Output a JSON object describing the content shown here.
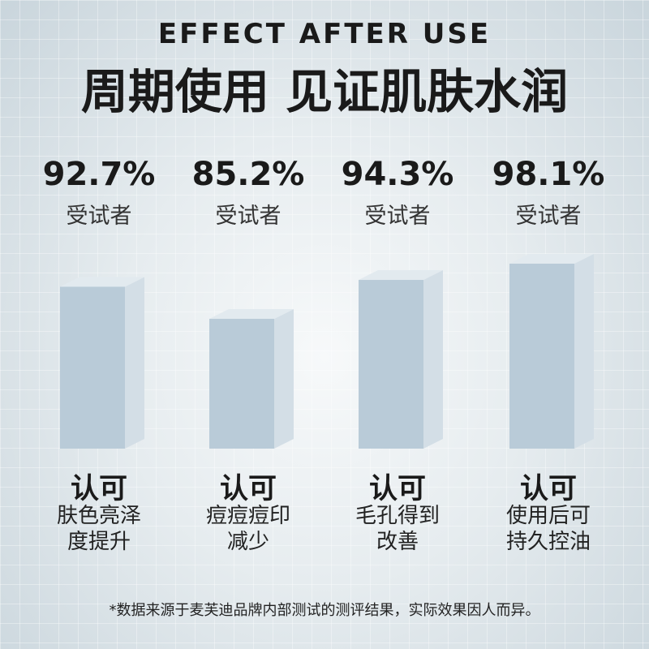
{
  "chart_data": {
    "type": "bar",
    "overline": "EFFECT AFTER USE",
    "title": "周期使用 见证肌肤水润",
    "value_caption": "受试者",
    "category_header": "认可",
    "categories": [
      "肤色亮泽度提升",
      "痘痘痘印减少",
      "毛孔得到改善",
      "使用后可持久控油"
    ],
    "values": [
      92.7,
      85.2,
      94.3,
      98.1
    ],
    "value_labels": [
      "92.7%",
      "85.2%",
      "94.3%",
      "98.1%"
    ],
    "colors": {
      "front": "#b9cbd8",
      "side": "#d3dee6",
      "top": "#e2eaef"
    },
    "footnote": "*数据来源于麦芙迪品牌内部测试的测评结果，实际效果因人而异。"
  }
}
